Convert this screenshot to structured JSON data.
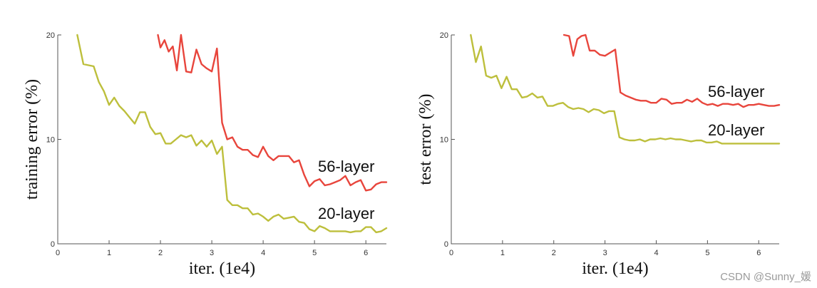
{
  "chart_data": [
    {
      "type": "line",
      "ylabel": "training error (%)",
      "xlabel": "iter. (1e4)",
      "xlim": [
        0,
        6.4
      ],
      "ylim": [
        0,
        20
      ],
      "xticks": [
        0,
        1,
        2,
        3,
        4,
        5,
        6
      ],
      "yticks": [
        0,
        10,
        20
      ],
      "series": [
        {
          "name": "56-layer",
          "color": "#e8453c",
          "x": [
            1.95,
            2.0,
            2.08,
            2.16,
            2.24,
            2.32,
            2.4,
            2.5,
            2.6,
            2.7,
            2.8,
            2.9,
            3.0,
            3.1,
            3.2,
            3.3,
            3.4,
            3.5,
            3.6,
            3.7,
            3.8,
            3.9,
            4.0,
            4.1,
            4.2,
            4.3,
            4.4,
            4.5,
            4.6,
            4.7,
            4.8,
            4.9,
            5.0,
            5.1,
            5.2,
            5.3,
            5.4,
            5.5,
            5.6,
            5.7,
            5.8,
            5.9,
            6.0,
            6.1,
            6.2,
            6.3,
            6.4
          ],
          "y": [
            20.0,
            18.8,
            19.5,
            18.4,
            18.9,
            16.6,
            20.0,
            16.5,
            16.4,
            18.6,
            17.2,
            16.8,
            16.5,
            18.7,
            11.6,
            10.0,
            10.2,
            9.3,
            9.0,
            9.0,
            8.5,
            8.3,
            9.3,
            8.4,
            8.0,
            8.4,
            8.4,
            8.4,
            7.8,
            8.0,
            6.6,
            5.5,
            6.0,
            6.2,
            5.6,
            5.7,
            5.9,
            6.1,
            6.5,
            5.6,
            5.9,
            6.1,
            5.1,
            5.2,
            5.7,
            5.9,
            5.9
          ]
        },
        {
          "name": "20-layer",
          "color": "#bdbf3c",
          "x": [
            0.38,
            0.5,
            0.6,
            0.7,
            0.8,
            0.9,
            1.0,
            1.1,
            1.2,
            1.3,
            1.4,
            1.5,
            1.6,
            1.7,
            1.8,
            1.9,
            2.0,
            2.1,
            2.2,
            2.3,
            2.4,
            2.5,
            2.6,
            2.7,
            2.8,
            2.9,
            3.0,
            3.1,
            3.2,
            3.3,
            3.4,
            3.5,
            3.6,
            3.7,
            3.8,
            3.9,
            4.0,
            4.1,
            4.2,
            4.3,
            4.4,
            4.5,
            4.6,
            4.7,
            4.8,
            4.9,
            5.0,
            5.1,
            5.2,
            5.3,
            5.4,
            5.5,
            5.6,
            5.7,
            5.8,
            5.9,
            6.0,
            6.1,
            6.2,
            6.3,
            6.4
          ],
          "y": [
            20.0,
            17.2,
            17.1,
            17.0,
            15.5,
            14.6,
            13.3,
            14.0,
            13.2,
            12.7,
            12.1,
            11.5,
            12.6,
            12.6,
            11.2,
            10.5,
            10.6,
            9.6,
            9.6,
            10.0,
            10.4,
            10.2,
            10.4,
            9.4,
            9.9,
            9.3,
            9.9,
            8.6,
            9.3,
            4.2,
            3.7,
            3.7,
            3.4,
            3.4,
            2.8,
            2.9,
            2.6,
            2.2,
            2.6,
            2.8,
            2.4,
            2.5,
            2.6,
            2.1,
            2.0,
            1.4,
            1.2,
            1.7,
            1.5,
            1.2,
            1.2,
            1.2,
            1.2,
            1.1,
            1.2,
            1.2,
            1.6,
            1.6,
            1.1,
            1.2,
            1.5
          ]
        }
      ],
      "annotations": [
        "56-layer",
        "20-layer"
      ]
    },
    {
      "type": "line",
      "ylabel": "test error (%)",
      "xlabel": "iter. (1e4)",
      "xlim": [
        0,
        6.4
      ],
      "ylim": [
        0,
        20
      ],
      "xticks": [
        0,
        1,
        2,
        3,
        4,
        5,
        6
      ],
      "yticks": [
        0,
        10,
        20
      ],
      "series": [
        {
          "name": "56-layer",
          "color": "#e8453c",
          "x": [
            2.2,
            2.3,
            2.38,
            2.46,
            2.54,
            2.62,
            2.7,
            2.8,
            2.9,
            3.0,
            3.1,
            3.2,
            3.3,
            3.4,
            3.5,
            3.6,
            3.7,
            3.8,
            3.9,
            4.0,
            4.1,
            4.2,
            4.3,
            4.4,
            4.5,
            4.6,
            4.7,
            4.8,
            4.9,
            5.0,
            5.1,
            5.2,
            5.3,
            5.4,
            5.5,
            5.6,
            5.7,
            5.8,
            5.9,
            6.0,
            6.1,
            6.2,
            6.3,
            6.4
          ],
          "y": [
            20.0,
            19.9,
            18.0,
            19.6,
            19.9,
            20.0,
            18.5,
            18.5,
            18.1,
            18.0,
            18.3,
            18.6,
            14.5,
            14.2,
            14.0,
            13.8,
            13.7,
            13.7,
            13.5,
            13.5,
            13.9,
            13.8,
            13.4,
            13.5,
            13.5,
            13.8,
            13.6,
            13.9,
            13.5,
            13.3,
            13.4,
            13.2,
            13.4,
            13.4,
            13.3,
            13.4,
            13.1,
            13.3,
            13.3,
            13.4,
            13.3,
            13.2,
            13.2,
            13.3
          ]
        },
        {
          "name": "20-layer",
          "color": "#bdbf3c",
          "x": [
            0.38,
            0.48,
            0.58,
            0.68,
            0.78,
            0.88,
            0.98,
            1.08,
            1.18,
            1.28,
            1.38,
            1.48,
            1.58,
            1.68,
            1.78,
            1.88,
            1.98,
            2.08,
            2.18,
            2.28,
            2.38,
            2.48,
            2.58,
            2.68,
            2.78,
            2.88,
            2.98,
            3.08,
            3.18,
            3.28,
            3.38,
            3.48,
            3.58,
            3.68,
            3.78,
            3.88,
            3.98,
            4.08,
            4.18,
            4.28,
            4.38,
            4.48,
            4.58,
            4.68,
            4.78,
            4.88,
            4.98,
            5.08,
            5.18,
            5.28,
            5.38,
            5.48,
            5.58,
            5.68,
            5.78,
            5.88,
            5.98,
            6.08,
            6.18,
            6.28,
            6.4
          ],
          "y": [
            20.0,
            17.4,
            18.9,
            16.1,
            15.9,
            16.1,
            14.9,
            16.0,
            14.8,
            14.8,
            14.0,
            14.1,
            14.4,
            14.0,
            14.1,
            13.2,
            13.2,
            13.4,
            13.5,
            13.1,
            12.9,
            13.0,
            12.9,
            12.6,
            12.9,
            12.8,
            12.5,
            12.7,
            12.7,
            10.2,
            10.0,
            9.9,
            9.9,
            10.0,
            9.8,
            10.0,
            10.0,
            10.1,
            10.0,
            10.1,
            10.0,
            10.0,
            9.9,
            9.8,
            9.9,
            9.9,
            9.7,
            9.7,
            9.8,
            9.6,
            9.6,
            9.6,
            9.6,
            9.6,
            9.6,
            9.6,
            9.6,
            9.6,
            9.6,
            9.6,
            9.6
          ]
        }
      ],
      "annotations": [
        "56-layer",
        "20-layer"
      ]
    }
  ],
  "watermark": "CSDN @Sunny_媛"
}
